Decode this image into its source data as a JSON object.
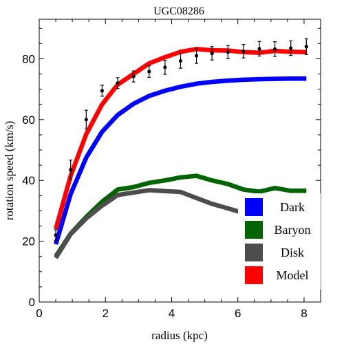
{
  "chart_data": {
    "type": "line",
    "title": "UGC08286",
    "xlabel": "radius (kpc)",
    "ylabel": "rotation speed (km/s)",
    "xlim": [
      0,
      8.5
    ],
    "ylim": [
      0,
      93
    ],
    "xticks": [
      0,
      2,
      4,
      6,
      8
    ],
    "yticks": [
      0,
      20,
      40,
      60,
      80
    ],
    "grid": false,
    "legend": "bottom-right",
    "x": [
      0.5,
      0.95,
      1.42,
      1.9,
      2.37,
      2.85,
      3.32,
      3.8,
      4.27,
      4.75,
      5.22,
      5.7,
      6.17,
      6.65,
      7.12,
      7.6,
      8.07
    ],
    "series": [
      {
        "name": "Dark",
        "color": "#0000ff",
        "values": [
          19,
          35.5,
          47.5,
          56,
          61.5,
          65.2,
          67.8,
          69.5,
          70.8,
          71.8,
          72.4,
          72.8,
          73.1,
          73.3,
          73.4,
          73.5,
          73.5
        ]
      },
      {
        "name": "Baryon",
        "color": "#006400",
        "values": [
          15,
          22.5,
          28,
          33,
          37,
          37.8,
          39.2,
          40,
          41,
          41.5,
          40,
          38.8,
          37,
          36.3,
          37.5,
          36.6,
          36.6
        ]
      },
      {
        "name": "Disk",
        "color": "#4d4d4d",
        "values": [
          14.5,
          22.3,
          27.5,
          31.7,
          35.2,
          36,
          36.8,
          36.5,
          36.2,
          34.2,
          32.3,
          30.8,
          29.3,
          28,
          26.7,
          25.4,
          24.5
        ]
      },
      {
        "name": "Model",
        "color": "#ff0000",
        "values": [
          24,
          41.5,
          55.2,
          65,
          71.5,
          75,
          78.5,
          80.5,
          82.3,
          83.2,
          82.8,
          82.7,
          82.2,
          82,
          82.6,
          82.3,
          82.2
        ]
      }
    ],
    "observed": {
      "x": [
        0.5,
        0.95,
        1.42,
        1.9,
        2.37,
        2.85,
        3.32,
        3.8,
        4.27,
        4.75,
        5.22,
        5.7,
        6.17,
        6.65,
        7.12,
        7.6,
        8.07
      ],
      "y": [
        22,
        43.5,
        60,
        69.5,
        72,
        74.2,
        75.8,
        77.2,
        79.3,
        81,
        81.8,
        82.2,
        82.5,
        83.3,
        83.2,
        83.5,
        84
      ],
      "err": [
        1.8,
        3.2,
        3.1,
        1.8,
        1.8,
        1.8,
        1.9,
        2.3,
        2.4,
        2.5,
        2.2,
        2.2,
        2.2,
        2.4,
        2.4,
        2.4,
        2.6
      ]
    }
  }
}
